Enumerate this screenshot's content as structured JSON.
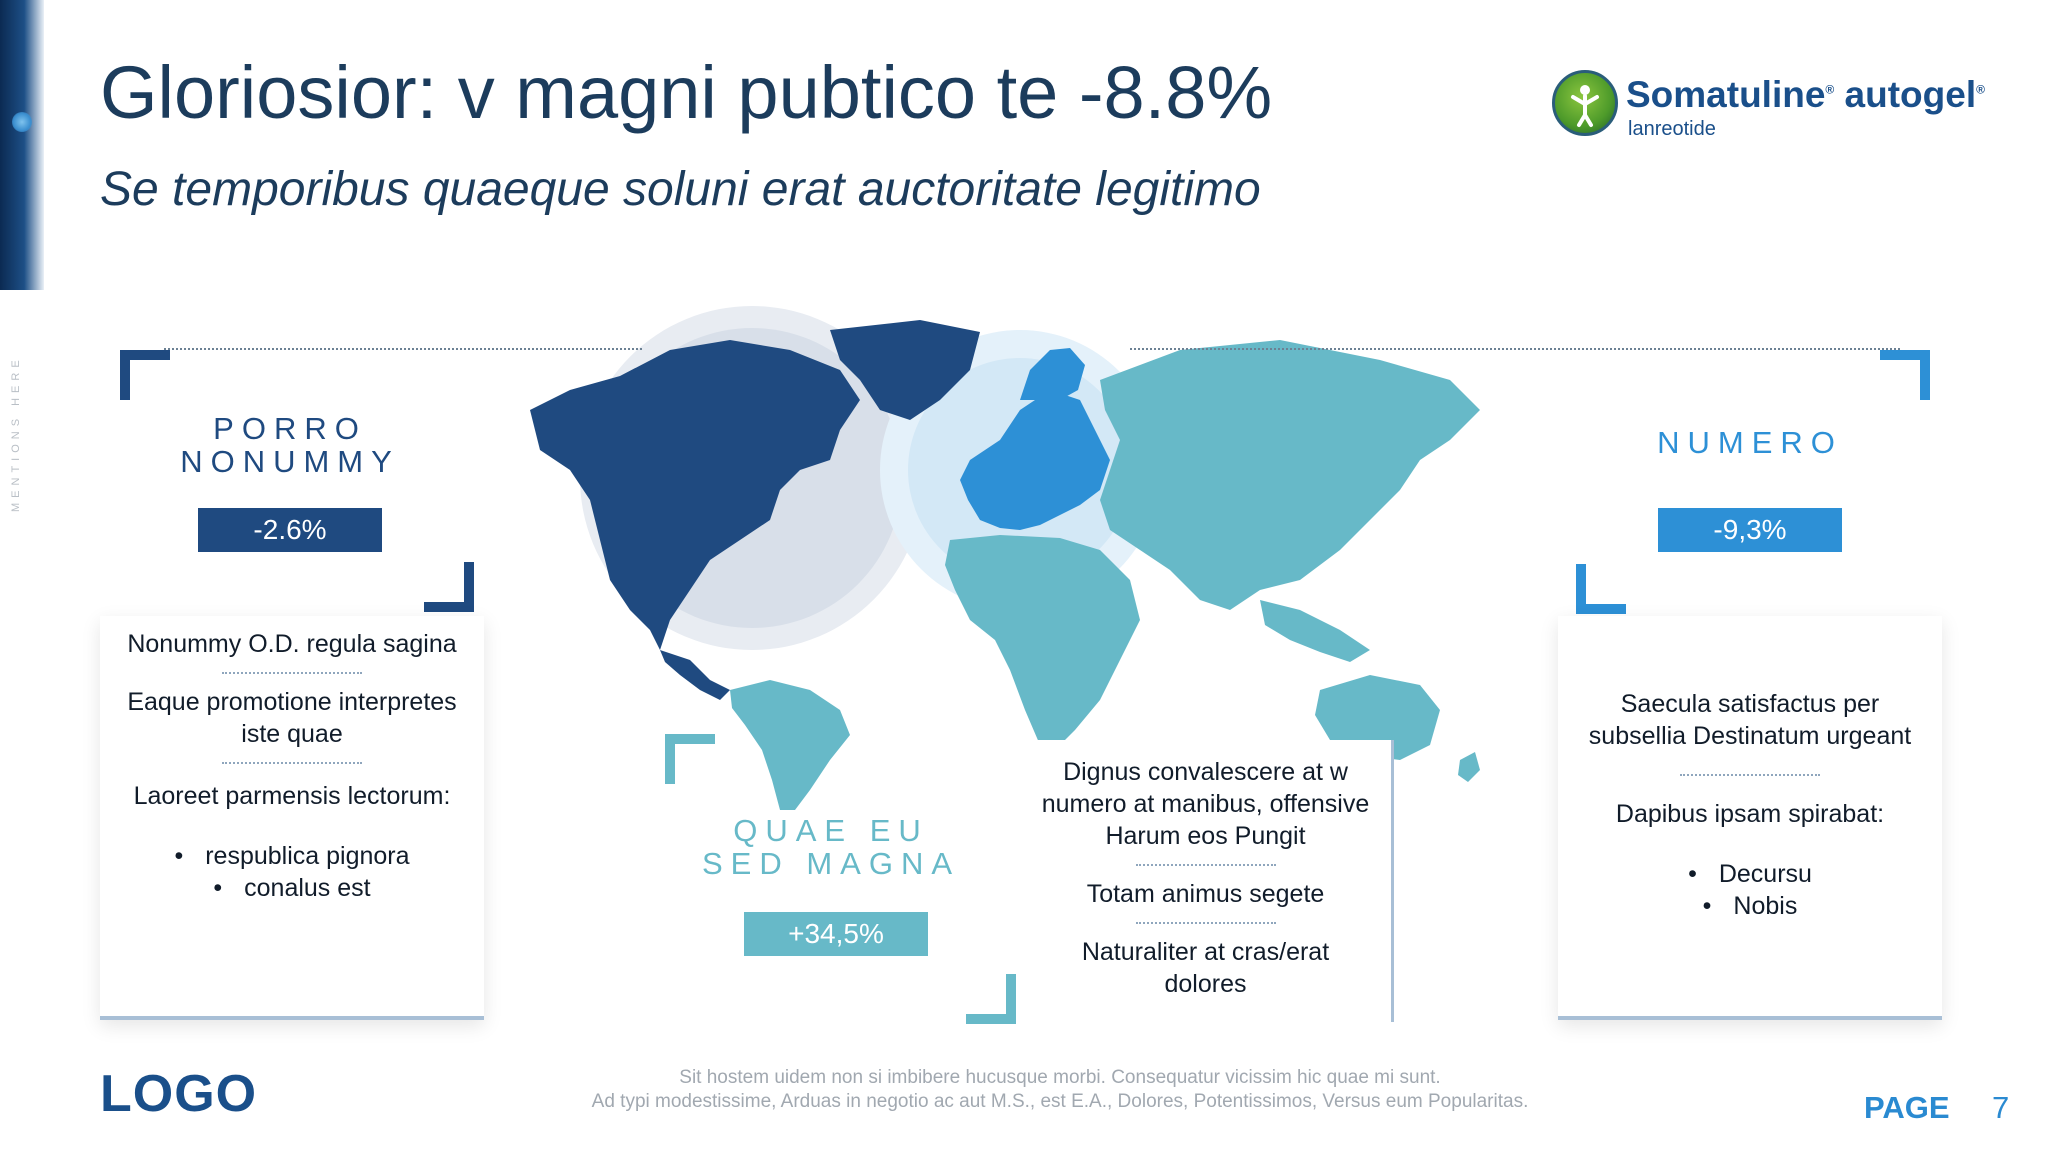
{
  "sidebar": {
    "vertical_text": "MENTIONS HERE"
  },
  "header": {
    "title": "Gloriosior: v magni pubtico te -8.8%",
    "subtitle": "Se temporibus quaeque soluni erat auctoritate legitimo"
  },
  "brand": {
    "name": "Somatuline",
    "name_suffix": "autogel",
    "registered": "®",
    "generic": "lanreotide"
  },
  "colors": {
    "dark_navy": "#1f4a80",
    "mid_blue": "#2d90d6",
    "teal": "#67b9c8",
    "title": "#1c3c5c"
  },
  "regions": {
    "left": {
      "title_line1": "PORRO",
      "title_line2": "NONUMMY",
      "value": "-2.6%",
      "card": {
        "item1": "Nonummy O.D. regula sagina",
        "item2": "Eaque promotione interpretes iste quae",
        "item3": "Laoreet parmensis lectorum:",
        "bullets": [
          "respublica pignora",
          "conalus est"
        ]
      }
    },
    "middle": {
      "title_line1": "QUAE EU",
      "title_line2": "SED MAGNA",
      "value": "+34,5%",
      "card": {
        "item1": "Dignus convalescere at w numero at manibus, offensive Harum eos Pungit",
        "item2": "Totam animus segete",
        "item3": "Naturaliter at cras/erat dolores"
      }
    },
    "right": {
      "title": "NUMERO",
      "value": "-9,3%",
      "card": {
        "item1": "Saecula satisfactus per subsellia Destinatum urgeant",
        "item2": "Dapibus ipsam spirabat:",
        "bullets": [
          "Decursu",
          "Nobis"
        ]
      }
    }
  },
  "footer": {
    "logo": "LOGO",
    "note_line1": "Sit hostem uidem non si imbibere hucusque morbi. Consequatur vicissim hic quae mi sunt.",
    "note_line2": "Ad typi modestissime, Arduas in negotio ac aut M.S., est E.A., Dolores, Potentissimos, Versus eum Popularitas.",
    "page_label": "PAGE",
    "page_number": "7"
  }
}
